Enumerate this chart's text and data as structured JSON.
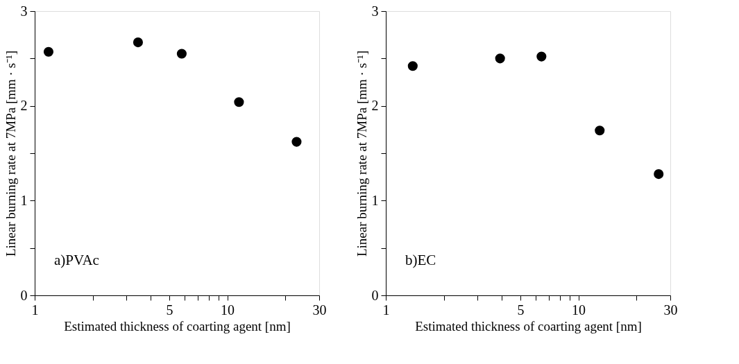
{
  "chart_data": [
    {
      "type": "scatter",
      "xlabel": "Estimated thickness of coarting agent  [nm]",
      "ylabel": "Linear burning rate at 7MPa [mm · s⁻¹]",
      "annotations": [
        "a)PVAc"
      ],
      "log": "x",
      "grid": false,
      "marker": "circle",
      "x": [
        1.18,
        3.44,
        5.8,
        11.5,
        22.9
      ],
      "series": [
        {
          "color": "#000000",
          "values": [
            2.57,
            2.67,
            2.55,
            2.04,
            1.62
          ]
        }
      ],
      "xlim": [
        1,
        30
      ],
      "xticks": [
        1,
        {
          "value": 2,
          "label": null
        },
        {
          "value": 3,
          "label": null
        },
        {
          "value": 4,
          "label": null
        },
        5,
        {
          "value": 6,
          "label": null
        },
        {
          "value": 7,
          "label": null
        },
        {
          "value": 8,
          "label": null
        },
        {
          "value": 9,
          "label": null
        },
        10,
        {
          "value": 20,
          "label": null
        },
        30
      ],
      "ylim": [
        0,
        3
      ],
      "yticks": [
        0,
        {
          "value": 0.5,
          "label": null
        },
        1,
        {
          "value": 1.5,
          "label": null
        },
        2,
        {
          "value": 2.5,
          "label": null
        },
        3
      ]
    },
    {
      "type": "scatter",
      "xlabel": "Estimated thickness of coarting agent  [nm]",
      "ylabel": "Linear burning rate at 7MPa [mm · s⁻¹]",
      "annotations": [
        "b)EC"
      ],
      "log": "x",
      "grid": false,
      "marker": "circle",
      "x": [
        1.38,
        3.92,
        6.43,
        12.9,
        26.1
      ],
      "series": [
        {
          "color": "#000000",
          "values": [
            2.42,
            2.5,
            2.52,
            1.74,
            1.28
          ]
        }
      ],
      "xlim": [
        1,
        30
      ],
      "xticks": [
        1,
        {
          "value": 2,
          "label": null
        },
        {
          "value": 3,
          "label": null
        },
        {
          "value": 4,
          "label": null
        },
        5,
        {
          "value": 6,
          "label": null
        },
        {
          "value": 7,
          "label": null
        },
        {
          "value": 8,
          "label": null
        },
        {
          "value": 9,
          "label": null
        },
        10,
        {
          "value": 20,
          "label": null
        },
        30
      ],
      "ylim": [
        0,
        3
      ],
      "yticks": [
        0,
        {
          "value": 0.5,
          "label": null
        },
        1,
        {
          "value": 1.5,
          "label": null
        },
        2,
        {
          "value": 2.5,
          "label": null
        },
        3
      ]
    }
  ]
}
